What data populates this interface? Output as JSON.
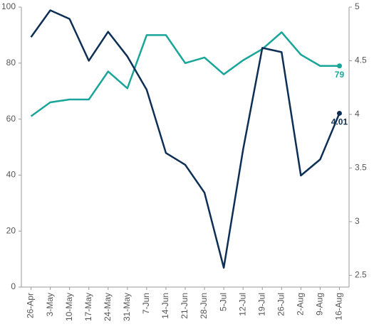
{
  "chart_data": {
    "type": "line",
    "categories": [
      "26-Apr",
      "3-May",
      "10-May",
      "17-May",
      "24-May",
      "31-May",
      "7-Jun",
      "14-Jun",
      "21-Jun",
      "28-Jun",
      "5-Jul",
      "12-Jul",
      "19-Jul",
      "26-Jul",
      "2-Aug",
      "9-Aug",
      "16-Aug"
    ],
    "series": [
      {
        "color": "#1aa59a",
        "values": [
          61,
          66,
          67,
          67,
          77,
          71,
          90,
          90,
          80,
          82,
          76,
          81,
          85,
          91,
          83,
          79,
          79
        ]
      },
      {
        "color": "#0d2f55",
        "axis": "y2",
        "values": [
          4.72,
          4.97,
          4.89,
          4.5,
          4.77,
          4.54,
          4.23,
          3.64,
          3.53,
          3.27,
          2.57,
          3.67,
          4.62,
          4.58,
          3.43,
          3.58,
          4.01
        ]
      }
    ],
    "ylim": [
      0,
      100
    ],
    "yticks": [
      0,
      20,
      40,
      60,
      80,
      100
    ],
    "y2lim": [
      2.39,
      5
    ],
    "y2ticks": [
      2.5,
      3,
      3.5,
      4,
      4.5,
      5
    ],
    "grid": false
  }
}
